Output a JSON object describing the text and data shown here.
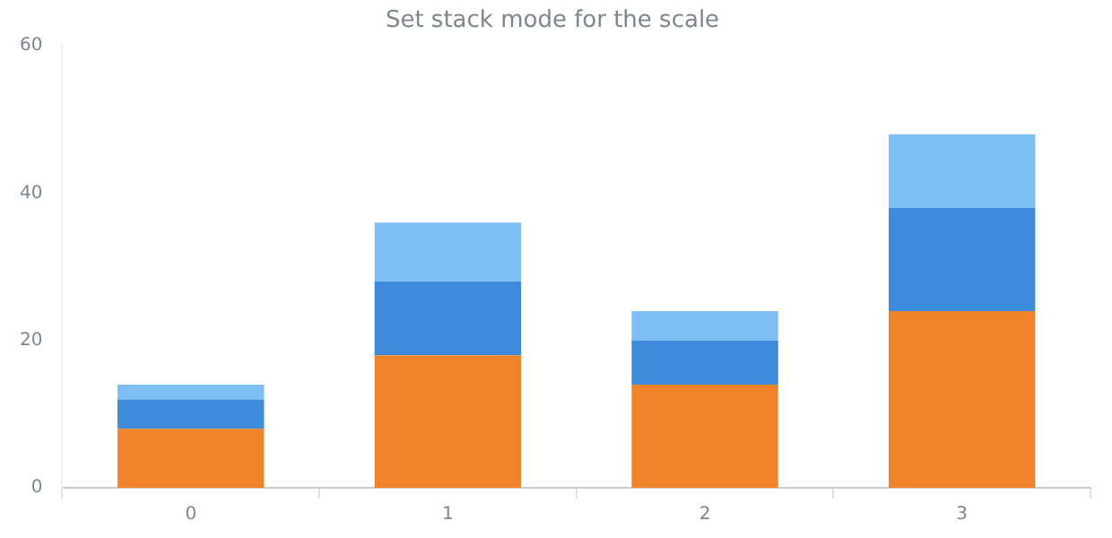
{
  "chart_data": {
    "type": "bar",
    "title": "Set stack mode for the scale",
    "categories": [
      "0",
      "1",
      "2",
      "3"
    ],
    "stacked": true,
    "series": [
      {
        "color": "#f0832a",
        "values": [
          8,
          18,
          14,
          24
        ]
      },
      {
        "color": "#3d8bda",
        "values": [
          4,
          10,
          6,
          14
        ]
      },
      {
        "color": "#7dbff5",
        "values": [
          2,
          8,
          4,
          10
        ]
      }
    ],
    "ylim": [
      0,
      60
    ],
    "yticks": [
      0,
      20,
      40,
      60
    ],
    "grid": false,
    "legend": false
  }
}
